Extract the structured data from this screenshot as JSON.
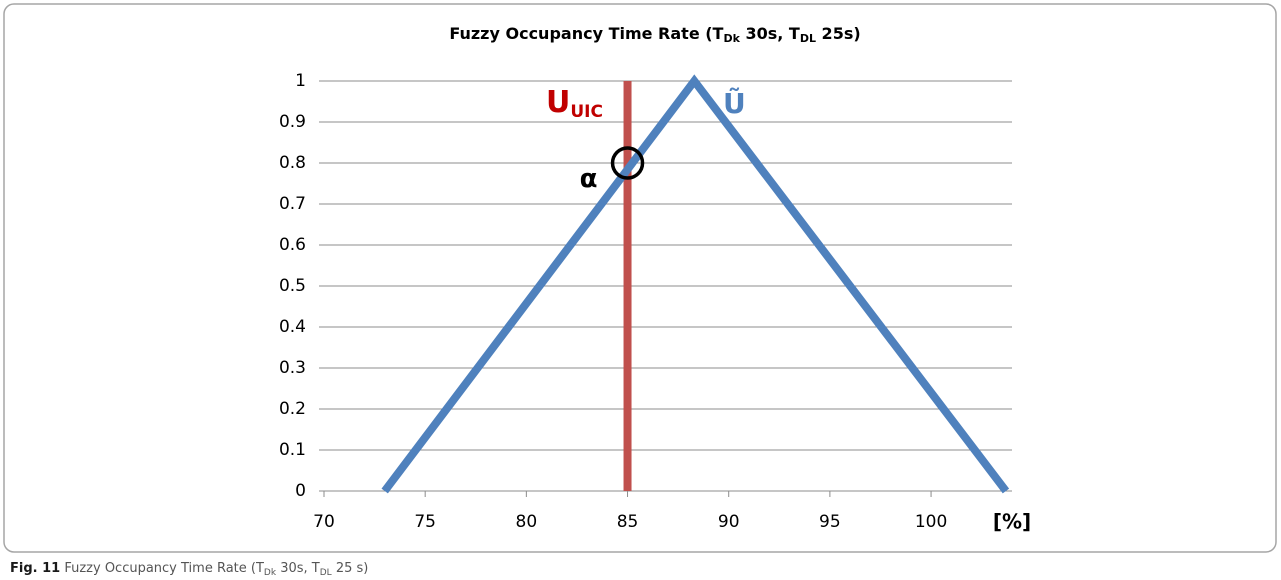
{
  "chart_data": {
    "type": "line",
    "title": [
      "Fuzzy Occupancy Time Rate (T",
      "Dk",
      " 30s, T",
      "DL",
      " 25s)"
    ],
    "x_label": "[%]",
    "series": [
      {
        "color": "#4f81bd",
        "x": [
          73,
          88.3,
          103.7
        ],
        "values": [
          0,
          1,
          0
        ]
      },
      {
        "color": "#c0504d",
        "x": [
          85,
          85
        ],
        "values": [
          0,
          1
        ]
      }
    ],
    "annotations": [
      {
        "text": [
          "U",
          "UIC"
        ],
        "color": "#c00000"
      },
      {
        "text": [
          "Ũ"
        ],
        "color": "#4f81bd"
      },
      {
        "text": [
          "α"
        ],
        "color": "#000000",
        "x": 85,
        "y": 0.8
      }
    ],
    "xlim": [
      70,
      104
    ],
    "xticks": [
      70,
      75,
      80,
      85,
      90,
      95,
      100
    ],
    "ylim": [
      0,
      1
    ],
    "yticks": [
      0,
      0.1,
      0.2,
      0.3,
      0.4,
      0.5,
      0.6,
      0.7,
      0.8,
      0.9,
      1
    ],
    "grid": true
  },
  "caption": {
    "label": "Fig. 11",
    "text": [
      " Fuzzy Occupancy Time Rate (T",
      "Dk",
      " 30s, T",
      "DL",
      " 25 s)"
    ]
  }
}
